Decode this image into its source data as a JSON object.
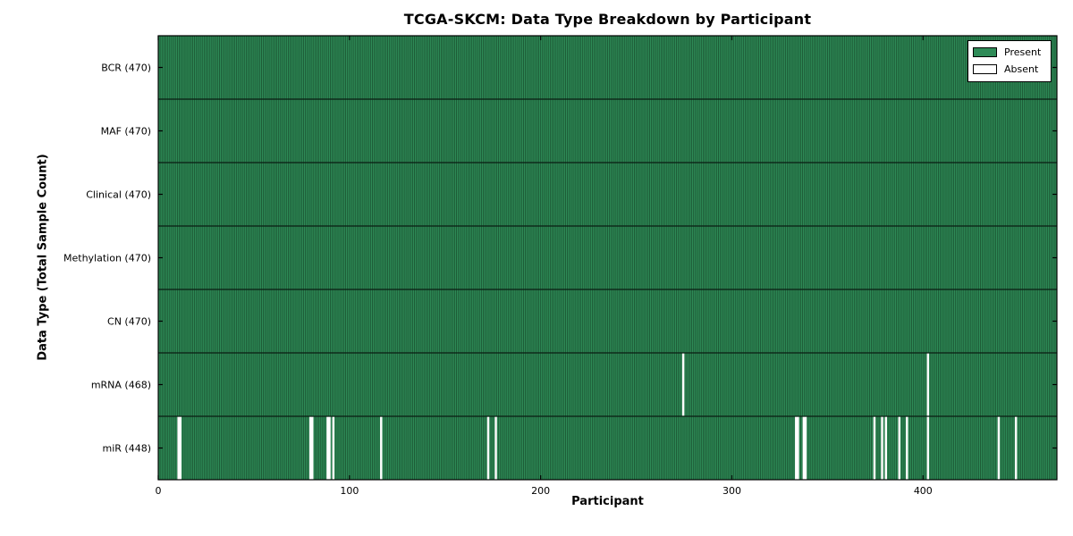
{
  "chart_data": {
    "type": "heatmap",
    "title": "TCGA-SKCM: Data Type Breakdown by Participant",
    "xlabel": "Participant",
    "ylabel": "Data Type (Total Sample Count)",
    "xlim": [
      0,
      470
    ],
    "n_participants": 470,
    "x_tick_values": [
      0,
      100,
      200,
      300,
      400
    ],
    "x_tick_labels": [
      "0",
      "100",
      "200",
      "300",
      "400"
    ],
    "grid": false,
    "rows": [
      {
        "label": "BCR (470)",
        "data_type": "BCR",
        "total_samples": 470,
        "absent_participants": []
      },
      {
        "label": "MAF (470)",
        "data_type": "MAF",
        "total_samples": 470,
        "absent_participants": []
      },
      {
        "label": "Clinical (470)",
        "data_type": "Clinical",
        "total_samples": 470,
        "absent_participants": []
      },
      {
        "label": "Methylation (470)",
        "data_type": "Methylation",
        "total_samples": 470,
        "absent_participants": []
      },
      {
        "label": "CN (470)",
        "data_type": "CN",
        "total_samples": 470,
        "absent_participants": []
      },
      {
        "label": "mRNA (468)",
        "data_type": "mRNA",
        "total_samples": 468,
        "absent_participants": [
          274,
          402
        ]
      },
      {
        "label": "miR (448)",
        "data_type": "miR",
        "total_samples": 448,
        "absent_participants": [
          10,
          11,
          79,
          80,
          88,
          89,
          91,
          116,
          172,
          176,
          333,
          334,
          337,
          338,
          374,
          378,
          380,
          387,
          391,
          402,
          439,
          448
        ]
      }
    ],
    "legend": {
      "position": "upper right",
      "entries": [
        {
          "label": "Present",
          "color": "#2E8B57"
        },
        {
          "label": "Absent",
          "color": "#FFFFFF"
        }
      ]
    },
    "colors": {
      "present": "#2E8B57",
      "absent": "#FFFFFF",
      "bar_edge": "#1A5130",
      "row_divider": "#0B1F14",
      "axis": "#000000",
      "background": "#FFFFFF"
    }
  }
}
